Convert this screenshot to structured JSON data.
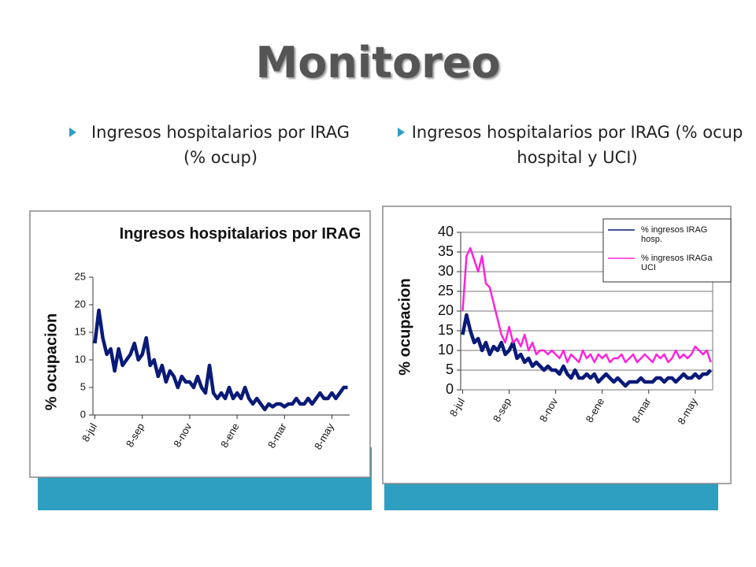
{
  "title": "Monitoreo",
  "bullets": [
    "Ingresos hospitalarios por IRAG (% ocup)",
    "Ingresos hospitalarios por IRAG (% ocup hospital y UCI)"
  ],
  "chart_data": [
    {
      "type": "line",
      "title": "Ingresos hospitalarios por IRAG",
      "ylabel": "% ocupacion",
      "categories": [
        "8-jul",
        null,
        null,
        null,
        null,
        null,
        null,
        null,
        null,
        null,
        null,
        null,
        "8-sep",
        null,
        null,
        null,
        null,
        null,
        null,
        null,
        null,
        null,
        null,
        null,
        "8-nov",
        null,
        null,
        null,
        null,
        null,
        null,
        null,
        null,
        null,
        null,
        null,
        "8-ene",
        null,
        null,
        null,
        null,
        null,
        null,
        null,
        null,
        null,
        null,
        null,
        "8-mar",
        null,
        null,
        null,
        null,
        null,
        null,
        null,
        null,
        null,
        null,
        null,
        "8-may",
        null,
        null,
        null,
        null
      ],
      "values": [
        13,
        19,
        14,
        11,
        12,
        8,
        12,
        9,
        10,
        11,
        13,
        10,
        11,
        14,
        9,
        10,
        7,
        9,
        6,
        8,
        7,
        5,
        7,
        6,
        6,
        5,
        7,
        5,
        4,
        9,
        4,
        3,
        4,
        3,
        5,
        3,
        4,
        3,
        5,
        3,
        2,
        3,
        2,
        1,
        2,
        1.5,
        2,
        2,
        1.5,
        2,
        2,
        3,
        2,
        2,
        3,
        2,
        3,
        4,
        3,
        3,
        4,
        3,
        4,
        5,
        5
      ],
      "color": "#0a1a78",
      "ylim": [
        0,
        25
      ],
      "yticks": [
        0,
        5,
        10,
        15,
        20,
        25
      ],
      "grid": false
    },
    {
      "type": "line",
      "ylabel": "% ocupacion",
      "categories": [
        "8-jul",
        null,
        null,
        null,
        null,
        null,
        null,
        null,
        null,
        null,
        null,
        null,
        "8-sep",
        null,
        null,
        null,
        null,
        null,
        null,
        null,
        null,
        null,
        null,
        null,
        "8-nov",
        null,
        null,
        null,
        null,
        null,
        null,
        null,
        null,
        null,
        null,
        null,
        "8-ene",
        null,
        null,
        null,
        null,
        null,
        null,
        null,
        null,
        null,
        null,
        null,
        "8-mar",
        null,
        null,
        null,
        null,
        null,
        null,
        null,
        null,
        null,
        null,
        null,
        "8-may",
        null,
        null,
        null,
        null
      ],
      "series": [
        {
          "name": "% ingresos IRAG hosp.",
          "color": "#0a1a78",
          "values": [
            14,
            19,
            15,
            12,
            13,
            10,
            12,
            9,
            11,
            10,
            12,
            9,
            10,
            12,
            8,
            9,
            7,
            8,
            6,
            7,
            6,
            5,
            6,
            5,
            5,
            4,
            6,
            4,
            3,
            5,
            3,
            3,
            4,
            3,
            4,
            2,
            3,
            4,
            3,
            2,
            3,
            2,
            1,
            2,
            2,
            2,
            3,
            2,
            2,
            2,
            3,
            3,
            2,
            3,
            3,
            2,
            3,
            4,
            3,
            3,
            4,
            3,
            4,
            4,
            5
          ]
        },
        {
          "name": "% ingresos IRAGa UCI",
          "color": "#ff22dd",
          "values": [
            20,
            34,
            36,
            33,
            30,
            34,
            27,
            26,
            22,
            18,
            14,
            12,
            16,
            12,
            13,
            11,
            14,
            10,
            12,
            9,
            10,
            10,
            9,
            10,
            9,
            8,
            10,
            7,
            9,
            8,
            7,
            10,
            8,
            9,
            7,
            9,
            8,
            9,
            7,
            8,
            8,
            9,
            7,
            8,
            9,
            7,
            8,
            9,
            8,
            7,
            9,
            8,
            9,
            7,
            8,
            10,
            8,
            9,
            8,
            9,
            11,
            10,
            9,
            10,
            7
          ]
        }
      ],
      "ylim": [
        0,
        40
      ],
      "yticks": [
        0,
        5,
        10,
        15,
        20,
        25,
        30,
        35,
        40
      ],
      "grid": true,
      "legend": "upper right"
    }
  ]
}
